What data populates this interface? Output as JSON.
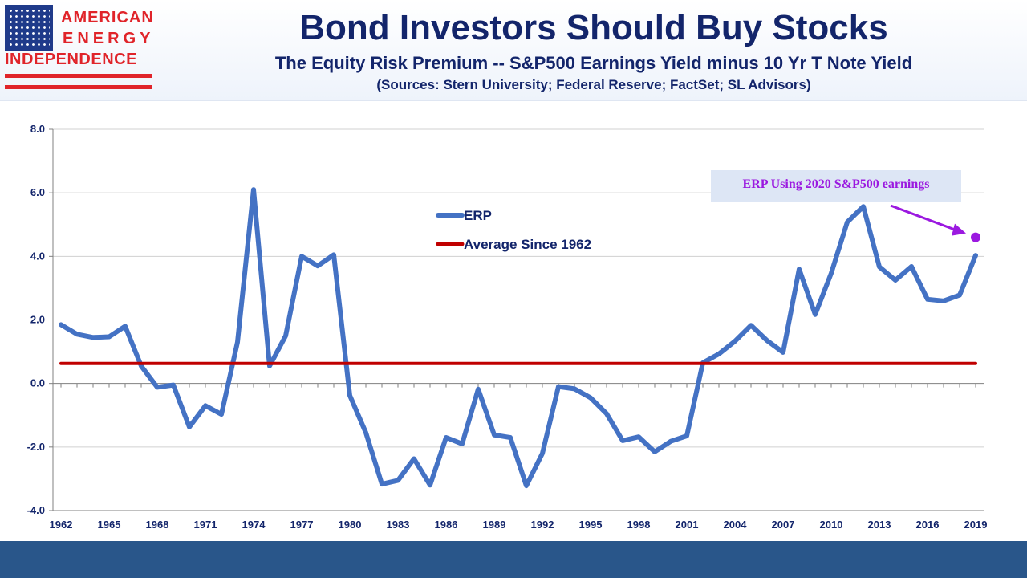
{
  "header": {
    "title": "Bond Investors Should Buy Stocks",
    "subtitle": "The Equity Risk Premium -- S&P500 Earnings Yield minus 10 Yr T Note Yield",
    "sources": "(Sources: Stern University; Federal Reserve; FactSet; SL Advisors)"
  },
  "logo": {
    "line1": "AMERICAN",
    "line2": "ENERGY",
    "line3": "INDEPENDENCE",
    "colors": {
      "flag": "#1f3a8a",
      "text": "#e0242a"
    }
  },
  "chart_data": {
    "type": "line",
    "title": "",
    "xlabel": "",
    "ylabel": "",
    "x_tick_labels": [
      "1962",
      "1965",
      "1968",
      "1971",
      "1974",
      "1977",
      "1980",
      "1983",
      "1986",
      "1989",
      "1992",
      "1995",
      "1998",
      "2001",
      "2004",
      "2007",
      "2010",
      "2013",
      "2016",
      "2019"
    ],
    "y_tick_labels": [
      "8.0",
      "6.0",
      "4.0",
      "2.0",
      "0.0",
      "-2.0",
      "-4.0"
    ],
    "ylim": [
      -4,
      8
    ],
    "xlim": [
      1962,
      2019
    ],
    "grid": "horizontal",
    "legend_position": "top-center",
    "series": [
      {
        "name": "ERP",
        "color": "#4472c4",
        "x": [
          1962,
          1963,
          1964,
          1965,
          1966,
          1967,
          1968,
          1969,
          1970,
          1971,
          1972,
          1973,
          1974,
          1975,
          1976,
          1977,
          1978,
          1979,
          1980,
          1981,
          1982,
          1983,
          1984,
          1985,
          1986,
          1987,
          1988,
          1989,
          1990,
          1991,
          1992,
          1993,
          1994,
          1995,
          1996,
          1997,
          1998,
          1999,
          2000,
          2001,
          2002,
          2003,
          2004,
          2005,
          2006,
          2007,
          2008,
          2009,
          2010,
          2011,
          2012,
          2013,
          2014,
          2015,
          2016,
          2017,
          2018,
          2019
        ],
        "values": [
          1.85,
          1.55,
          1.45,
          1.47,
          1.8,
          0.55,
          -0.12,
          -0.05,
          -1.37,
          -0.7,
          -0.97,
          1.3,
          6.1,
          0.55,
          1.5,
          4.0,
          3.7,
          4.05,
          -0.38,
          -1.55,
          -3.17,
          -3.05,
          -2.37,
          -3.2,
          -1.7,
          -1.9,
          -0.18,
          -1.62,
          -1.7,
          -3.22,
          -2.2,
          -0.1,
          -0.17,
          -0.45,
          -0.95,
          -1.8,
          -1.68,
          -2.15,
          -1.82,
          -1.65,
          0.65,
          0.93,
          1.33,
          1.83,
          1.35,
          0.98,
          3.6,
          2.17,
          3.47,
          5.08,
          5.57,
          3.67,
          3.25,
          3.68,
          2.65,
          2.6,
          2.78,
          4.03
        ]
      },
      {
        "name": "Average Since 1962",
        "color": "#c00000",
        "x": [
          1962,
          2019
        ],
        "values": [
          0.63,
          0.63
        ]
      }
    ],
    "annotation": {
      "text": "ERP Using 2020 S&P500 earnings",
      "point": {
        "x": 2019,
        "y": 4.6
      },
      "color": "#9b19e0"
    }
  }
}
